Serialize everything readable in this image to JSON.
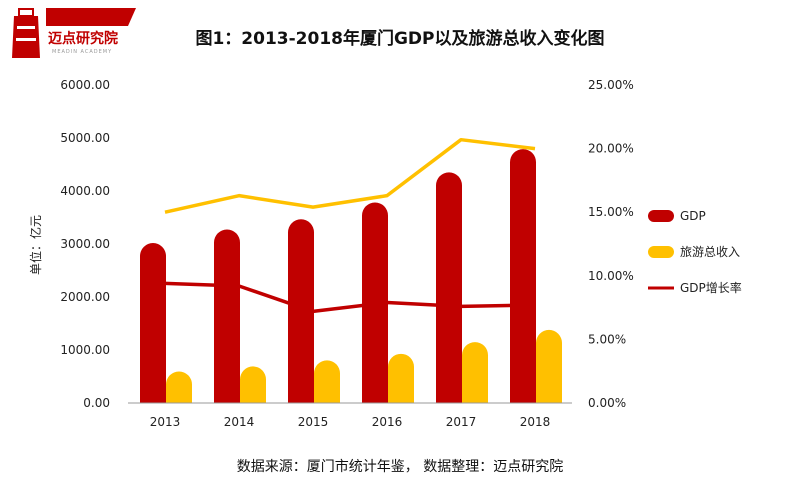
{
  "logo": {
    "text": "迈点研究院",
    "subtext": "MEADIN ACADEMY"
  },
  "title": "图1：2013-2018年厦门GDP以及旅游总收入变化图",
  "footer": "数据来源：厦门市统计年鉴， 数据整理：迈点研究院",
  "colors": {
    "gdp": "#c00000",
    "tourism": "#ffc000",
    "growth": "#c00000",
    "tourism_line": "#ffc000"
  },
  "chart_data": {
    "type": "bar",
    "categories": [
      "2013",
      "2014",
      "2015",
      "2016",
      "2017",
      "2018"
    ],
    "ylabel": "单位：亿元",
    "ylim": [
      0,
      6000
    ],
    "y2lim": [
      0,
      25
    ],
    "yticks": [
      "0.00",
      "1000.00",
      "2000.00",
      "3000.00",
      "4000.00",
      "5000.00",
      "6000.00"
    ],
    "y2ticks": [
      "0.00%",
      "5.00%",
      "10.00%",
      "15.00%",
      "20.00%",
      "25.00%"
    ],
    "series": [
      {
        "name": "GDP",
        "kind": "bar",
        "axis": "left",
        "values": [
          3018,
          3274,
          3466,
          3784,
          4352,
          4791
        ]
      },
      {
        "name": "旅游总收入",
        "kind": "bar",
        "axis": "left",
        "values": [
          595,
          690,
          805,
          928,
          1149,
          1379
        ]
      },
      {
        "name": "GDP增长率",
        "kind": "line",
        "axis": "right",
        "values": [
          9.4,
          9.2,
          7.2,
          7.9,
          7.6,
          7.7
        ]
      },
      {
        "kind": "line",
        "axis": "right",
        "values": [
          15.0,
          16.3,
          15.4,
          16.3,
          20.7,
          20.0
        ]
      }
    ],
    "legend_placement": "right",
    "grid": false
  }
}
